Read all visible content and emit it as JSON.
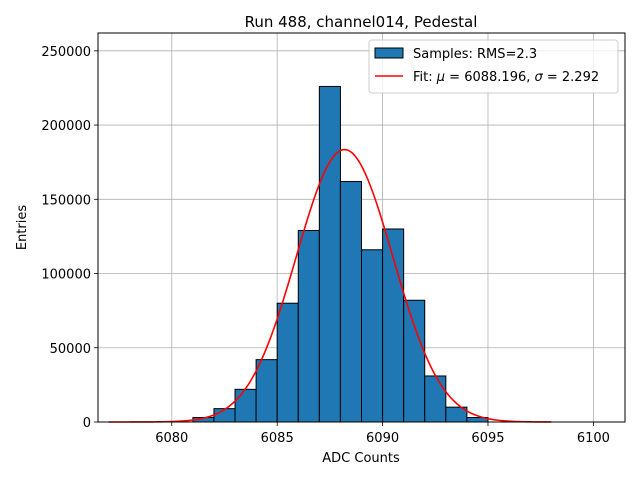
{
  "chart_data": {
    "type": "bar",
    "title": "Run 488, channel014, Pedestal",
    "xlabel": "ADC Counts",
    "ylabel": "Entries",
    "xlim": [
      6076.5,
      6101.5
    ],
    "ylim": [
      0,
      262000
    ],
    "xticks": [
      6080,
      6085,
      6090,
      6095,
      6100
    ],
    "yticks": [
      0,
      50000,
      100000,
      150000,
      200000,
      250000
    ],
    "grid": true,
    "legend_position": "top-right",
    "histogram": {
      "name": "Samples: RMS=2.3",
      "color": "#1f77b4",
      "bin_edges": [
        6081,
        6082,
        6083,
        6084,
        6085,
        6086,
        6087,
        6088,
        6089,
        6090,
        6091,
        6092,
        6093,
        6094,
        6095
      ],
      "values": [
        3000,
        9000,
        22000,
        42000,
        80000,
        129000,
        226000,
        162000,
        116000,
        130000,
        82000,
        31000,
        10000,
        3000
      ]
    },
    "fit": {
      "name": "Fit: μ = 6088.196, σ = 2.292",
      "legend_parts": {
        "prefix": "Fit: ",
        "mu_symbol": "μ",
        "mid": " = 6088.196, ",
        "sigma_symbol": "σ",
        "suffix": " = 2.292"
      },
      "color": "#ff0000",
      "mu": 6088.196,
      "sigma": 2.292,
      "amplitude": 183500,
      "x_range": [
        6077,
        6098
      ]
    }
  }
}
